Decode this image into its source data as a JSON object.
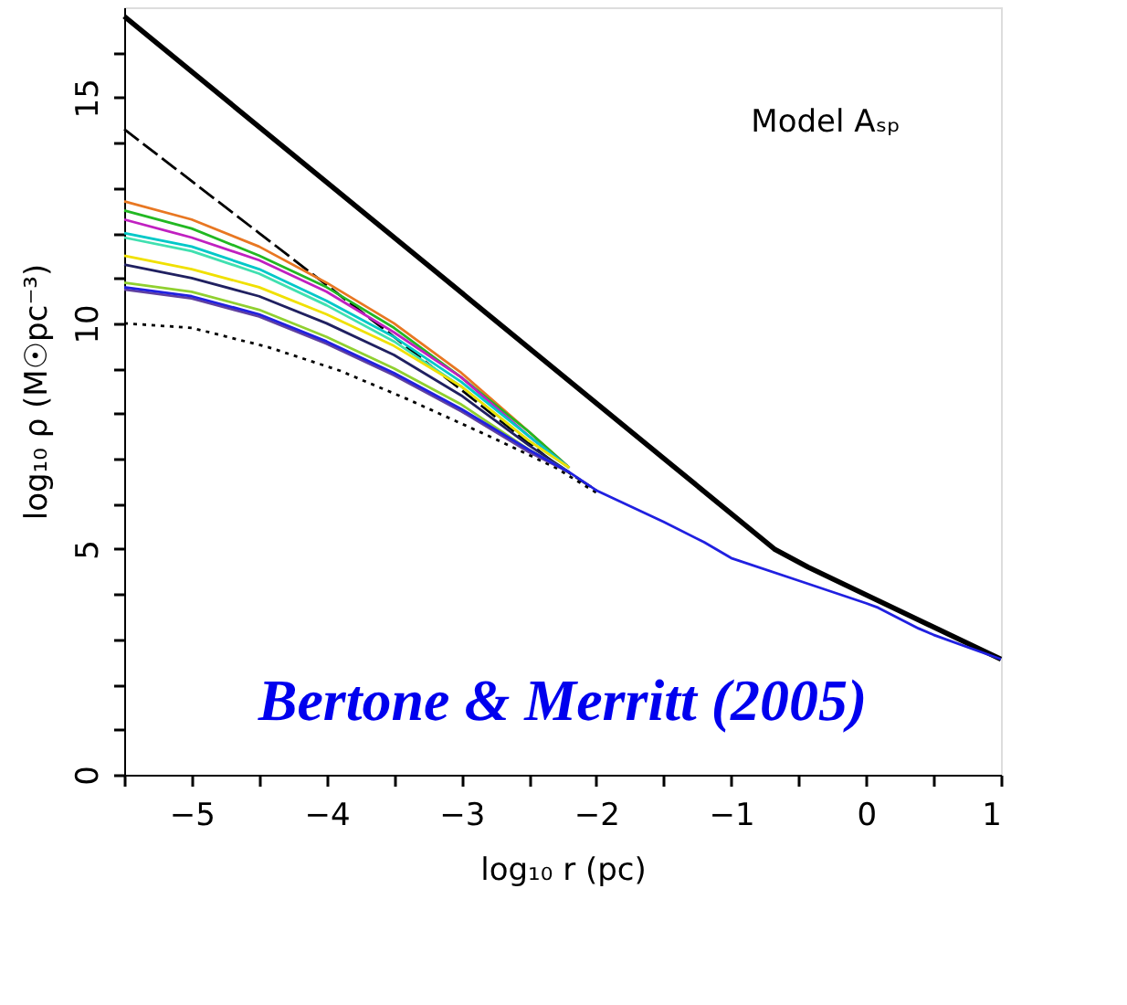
{
  "chart_data": {
    "type": "line",
    "xlabel": "log₁₀ r (pc)",
    "ylabel": "log₁₀ ρ (M☉pc⁻³)",
    "annotations": [
      "Model Aₛₚ",
      "Bertone & Merritt (2005)"
    ],
    "xlim": [
      -5.5,
      1
    ],
    "ylim": [
      0,
      17
    ],
    "xticks": [
      {
        "value": -5.5,
        "label": null
      },
      -5,
      {
        "value": -4.5,
        "label": null
      },
      -4,
      {
        "value": -3.5,
        "label": null
      },
      -3,
      {
        "value": -2.5,
        "label": null
      },
      -2,
      {
        "value": -1.5,
        "label": null
      },
      -1,
      {
        "value": -0.5,
        "label": null
      },
      0,
      {
        "value": 0.5,
        "label": null
      },
      1
    ],
    "yticks": [
      0,
      {
        "value": 1,
        "label": null
      },
      {
        "value": 2,
        "label": null
      },
      {
        "value": 3,
        "label": null
      },
      {
        "value": 4,
        "label": null
      },
      5,
      {
        "value": 6,
        "label": null
      },
      {
        "value": 7,
        "label": null
      },
      {
        "value": 8,
        "label": null
      },
      {
        "value": 9,
        "label": null
      },
      10,
      {
        "value": 11,
        "label": null
      },
      {
        "value": 12,
        "label": null
      },
      {
        "value": 13,
        "label": null
      },
      {
        "value": 14,
        "label": null
      },
      15,
      {
        "value": 16,
        "label": null
      }
    ],
    "grid": false,
    "legend": false,
    "marker": "none",
    "series": [
      {
        "color": "#000000",
        "line_style": "solid",
        "x": [
          -5.5,
          -0.68,
          -0.43,
          1
        ],
        "values": [
          16.8,
          5.0,
          4.6,
          2.56
        ]
      },
      {
        "color": "#000000",
        "line_style": "dashed",
        "x": [
          -5.5,
          -4.5,
          -3.5,
          -2.31,
          -2.0
        ],
        "values": [
          14.3,
          12.0,
          9.7,
          6.9,
          6.3
        ]
      },
      {
        "color": "#000000",
        "line_style": "dotted",
        "x": [
          -5.5,
          -5.0,
          -4.43,
          -3.9,
          -3.4,
          -2.75,
          -2.3,
          -2.0
        ],
        "values": [
          10.0,
          9.9,
          9.47,
          8.95,
          8.32,
          7.44,
          6.8,
          6.25
        ]
      },
      {
        "color": "#e87722",
        "line_style": "solid",
        "x": [
          -5.5,
          -5,
          -4.5,
          -4,
          -3.5,
          -3,
          -2.5,
          -2.2
        ],
        "values": [
          12.7,
          12.3,
          11.7,
          10.9,
          10.0,
          8.9,
          7.6,
          6.8
        ]
      },
      {
        "color": "#22b822",
        "line_style": "solid",
        "x": [
          -5.5,
          -5,
          -4.5,
          -4,
          -3.5,
          -3,
          -2.5,
          -2.2
        ],
        "values": [
          12.5,
          12.1,
          11.5,
          10.8,
          9.9,
          8.8,
          7.6,
          6.8
        ]
      },
      {
        "color": "#c020c0",
        "line_style": "solid",
        "x": [
          -5.5,
          -5,
          -4.5,
          -4,
          -3.5,
          -3,
          -2.5,
          -2.2
        ],
        "values": [
          12.3,
          11.9,
          11.4,
          10.7,
          9.8,
          8.8,
          7.5,
          6.8
        ]
      },
      {
        "color": "#00c8c8",
        "line_style": "solid",
        "x": [
          -5.5,
          -5,
          -4.5,
          -4,
          -3.5,
          -3,
          -2.5,
          -2.2
        ],
        "values": [
          12.0,
          11.7,
          11.2,
          10.5,
          9.7,
          8.7,
          7.5,
          6.8
        ]
      },
      {
        "color": "#40e0b0",
        "line_style": "solid",
        "x": [
          -5.5,
          -5,
          -4.5,
          -4,
          -3.5,
          -3,
          -2.5,
          -2.2
        ],
        "values": [
          11.9,
          11.6,
          11.1,
          10.4,
          9.6,
          8.6,
          7.4,
          6.8
        ]
      },
      {
        "color": "#f0e000",
        "line_style": "solid",
        "x": [
          -5.5,
          -5,
          -4.5,
          -4,
          -3.5,
          -3,
          -2.5,
          -2.2
        ],
        "values": [
          11.5,
          11.2,
          10.8,
          10.2,
          9.5,
          8.6,
          7.4,
          6.8
        ]
      },
      {
        "color": "#202060",
        "line_style": "solid",
        "x": [
          -5.5,
          -5,
          -4.5,
          -4,
          -3.5,
          -3,
          -2.5,
          -2.2
        ],
        "values": [
          11.3,
          11.0,
          10.6,
          10.0,
          9.3,
          8.4,
          7.3,
          6.7
        ]
      },
      {
        "color": "#90d030",
        "line_style": "solid",
        "x": [
          -5.5,
          -5,
          -4.5,
          -4,
          -3.5,
          -3,
          -2.5,
          -2.2
        ],
        "values": [
          10.9,
          10.7,
          10.3,
          9.7,
          9.0,
          8.2,
          7.2,
          6.7
        ]
      },
      {
        "color": "#6040a0",
        "line_style": "solid",
        "x": [
          -5.5,
          -5,
          -4.5,
          -4,
          -3.5,
          -3,
          -2.5,
          -2.2
        ],
        "values": [
          10.75,
          10.55,
          10.15,
          9.55,
          8.85,
          8.05,
          7.15,
          6.7
        ]
      },
      {
        "color": "#2020e0",
        "line_style": "solid",
        "x": [
          -5.5,
          -5,
          -4.5,
          -4,
          -3.5,
          -3,
          -2.5,
          -2.2,
          -2.0,
          -1.5,
          -1.2,
          -1.0,
          -0.5,
          0.0,
          0.09,
          0.39,
          0.5,
          1.0
        ],
        "values": [
          10.8,
          10.6,
          10.2,
          9.6,
          8.9,
          8.1,
          7.2,
          6.7,
          6.3,
          5.6,
          5.15,
          4.8,
          4.3,
          3.8,
          3.7,
          3.24,
          3.1,
          2.56
        ]
      }
    ]
  }
}
